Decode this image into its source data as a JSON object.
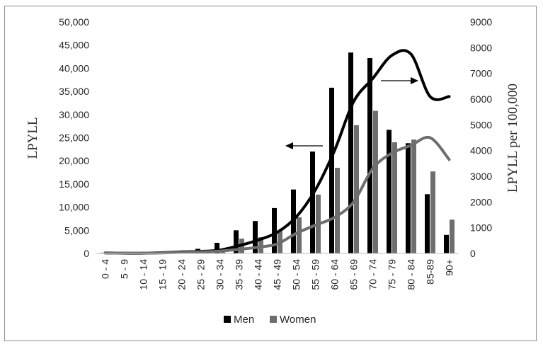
{
  "chart_data": {
    "type": "bar",
    "title": "",
    "xlabel": "",
    "ylabel": "LPYLL",
    "y2label": "LPYLL per 100,000",
    "ylim": [
      0,
      50000
    ],
    "y2lim": [
      0,
      9000
    ],
    "yticks": [
      "0",
      "5,000",
      "10,000",
      "15,000",
      "20,000",
      "25,000",
      "30,000",
      "35,000",
      "40,000",
      "45,000",
      "50,000"
    ],
    "y2ticks": [
      "0",
      "1000",
      "2000",
      "3000",
      "4000",
      "5000",
      "6000",
      "7000",
      "8000",
      "9000"
    ],
    "categories": [
      "0 - 4",
      "5 - 9",
      "10 - 14",
      "15 - 19",
      "20 - 24",
      "25 - 29",
      "30 - 34",
      "35 - 39",
      "40 - 44",
      "45 - 49",
      "50 - 54",
      "55 - 59",
      "60 - 64",
      "65 - 69",
      "70 - 74",
      "75 - 79",
      "80 - 84",
      "85-89",
      "90+"
    ],
    "series": [
      {
        "name": "Men",
        "type": "bar",
        "axis": "left",
        "color": "#000000",
        "values": [
          100,
          50,
          50,
          300,
          500,
          1000,
          2300,
          5000,
          7000,
          9800,
          13800,
          22000,
          35800,
          43400,
          42200,
          26700,
          23800,
          12800,
          4000
        ]
      },
      {
        "name": "Women",
        "type": "bar",
        "axis": "left",
        "color": "#6e6e6e",
        "values": [
          100,
          50,
          50,
          200,
          300,
          400,
          800,
          3200,
          3500,
          4800,
          7800,
          12700,
          18500,
          27700,
          30800,
          24000,
          24600,
          17700,
          7300
        ]
      },
      {
        "name": "Men",
        "type": "line",
        "axis": "right",
        "color": "#000000",
        "values": [
          20,
          10,
          10,
          30,
          60,
          80,
          130,
          300,
          520,
          820,
          1420,
          2470,
          4000,
          5900,
          6800,
          7700,
          7750,
          6100,
          6100
        ]
      },
      {
        "name": "Women",
        "type": "line",
        "axis": "right",
        "color": "#6e6e6e",
        "values": [
          20,
          10,
          10,
          20,
          40,
          60,
          90,
          160,
          240,
          370,
          780,
          1100,
          1400,
          2000,
          3300,
          3900,
          4200,
          4500,
          3650
        ]
      }
    ],
    "line_categories": [
      "0 - 4",
      "5 - 9",
      "10 - 14",
      "15 - 19",
      "20 - 24",
      "25 - 29",
      "30 - 34",
      "35 - 39",
      "40 - 44",
      "45 - 49",
      "50 - 54",
      "55 - 59",
      "60 - 64",
      "65 - 69",
      "70 - 74",
      "75 - 79",
      "80 - 84",
      "85-89",
      "90+"
    ],
    "legend": {
      "position": "bottom",
      "entries": [
        "Men",
        "Women"
      ]
    },
    "annotations": [
      {
        "type": "arrow",
        "direction": "left",
        "meaning": "bars read on left axis"
      },
      {
        "type": "arrow",
        "direction": "right",
        "meaning": "lines read on right axis"
      }
    ],
    "grid": false
  }
}
